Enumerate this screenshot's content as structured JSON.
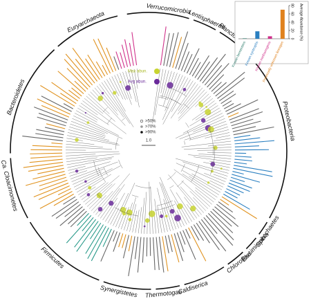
{
  "chart_data": {
    "type": "bar",
    "categories": [
      "Known fermenters",
      "Known syntrophs",
      "Known methanogens",
      "Previously unknown lineages"
    ],
    "values": [
      1,
      18,
      6,
      70
    ],
    "colors": [
      "#2a7a6a",
      "#2a7fc0",
      "#d0308a",
      "#e0821e"
    ],
    "ylabel": "Average Abundance (%)",
    "ylim": [
      0,
      80
    ],
    "yticks": [
      0,
      20,
      40,
      60,
      80
    ]
  },
  "phyla": [
    "Verrucomicrobia",
    "Lentisphaerae",
    "Planctomycetes",
    "Proteobacteria",
    "Spirochaetes",
    "Elusimicrobia",
    "Chloroflexi",
    "Caldiserica",
    "Thermotogae",
    "Synergistetes",
    "Firmicutes",
    "Ca. Cloacimonetes",
    "Bacteroidetes",
    "Euryarchaeota"
  ],
  "legend": {
    "max": "Max abun.",
    "avg": "Avg abun.",
    "support": [
      ">50%",
      ">70%",
      ">90%"
    ],
    "scale": "1.0"
  }
}
